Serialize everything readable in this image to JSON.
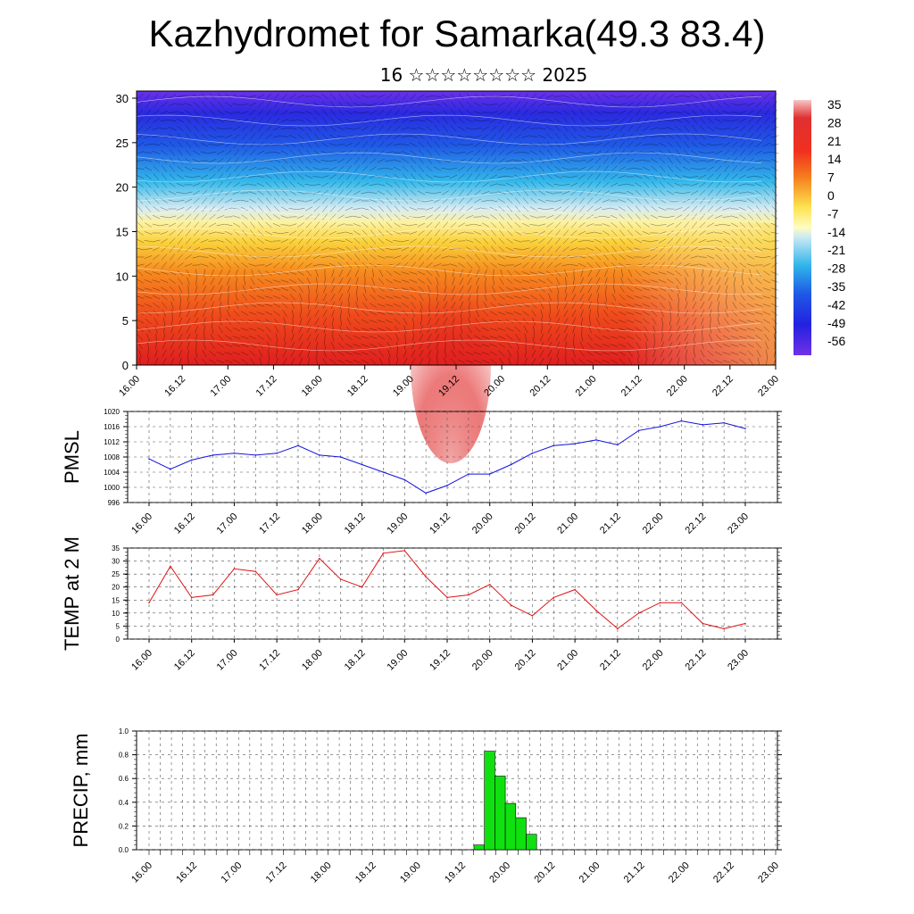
{
  "title": "Kazhydromet for Samarka(49.3 83.4)",
  "subtitle": "16 ☆☆☆☆☆☆☆☆ 2025",
  "time_labels": [
    "16.00",
    "16.12",
    "17.00",
    "17.12",
    "18.00",
    "18.12",
    "19.00",
    "19.12",
    "20.00",
    "20.12",
    "21.00",
    "21.12",
    "22.00",
    "22.12",
    "23.00"
  ],
  "colors": {
    "pmsl_line": "#1010e0",
    "temp_line": "#e01010",
    "precip_bar": "#10e010"
  },
  "chart_data": [
    {
      "type": "heatmap",
      "name": "cross-section",
      "ylabel": "",
      "ylim": [
        0,
        30
      ],
      "yticks": [
        "0",
        "5",
        "10",
        "15",
        "20",
        "25",
        "30"
      ],
      "x": [
        "16.00",
        "16.12",
        "17.00",
        "17.12",
        "18.00",
        "18.12",
        "19.00",
        "19.12",
        "20.00",
        "20.12",
        "21.00",
        "21.12",
        "22.00",
        "22.12",
        "23.00"
      ],
      "colorbar": {
        "labels": [
          "35",
          "28",
          "21",
          "14",
          "7",
          "0",
          "-7",
          "-14",
          "-21",
          "-28",
          "-35",
          "-42",
          "-49",
          "-56"
        ],
        "range": [
          -60,
          38
        ]
      }
    },
    {
      "type": "line",
      "ylabel": "PMSL",
      "ylim": [
        996,
        1020
      ],
      "yticks": [
        "996",
        "1000",
        "1004",
        "1008",
        "1012",
        "1016",
        "1020"
      ],
      "x": [
        "16.00",
        "16.06",
        "16.12",
        "16.18",
        "17.00",
        "17.06",
        "17.12",
        "17.18",
        "18.00",
        "18.06",
        "18.12",
        "18.18",
        "19.00",
        "19.06",
        "19.12",
        "19.18",
        "20.00",
        "20.06",
        "20.12",
        "20.18",
        "21.00",
        "21.06",
        "21.12",
        "21.18",
        "22.00",
        "22.06",
        "22.12",
        "22.18",
        "23.00"
      ],
      "values": [
        1007.5,
        1004.8,
        1007.2,
        1008.5,
        1009.0,
        1008.5,
        1009.0,
        1011.0,
        1008.5,
        1008.0,
        1006.0,
        1004.0,
        1002.0,
        998.5,
        1000.5,
        1003.5,
        1003.5,
        1006.0,
        1009.0,
        1011.0,
        1011.5,
        1012.5,
        1011.2,
        1015.0,
        1016.0,
        1017.5,
        1016.5,
        1017.0,
        1015.5
      ]
    },
    {
      "type": "line",
      "ylabel": "TEMP at 2 M",
      "ylim": [
        0,
        35
      ],
      "yticks": [
        "0",
        "5",
        "10",
        "15",
        "20",
        "25",
        "30",
        "35"
      ],
      "x": [
        "16.00",
        "16.06",
        "16.12",
        "16.18",
        "17.00",
        "17.06",
        "17.12",
        "17.18",
        "18.00",
        "18.06",
        "18.12",
        "18.18",
        "19.00",
        "19.06",
        "19.12",
        "19.18",
        "20.00",
        "20.06",
        "20.12",
        "20.18",
        "21.00",
        "21.06",
        "21.12",
        "21.18",
        "22.00",
        "22.06",
        "22.12",
        "22.18",
        "23.00"
      ],
      "values": [
        14,
        28,
        16,
        17,
        27,
        26,
        17,
        19,
        31,
        23,
        20,
        33,
        34,
        24,
        16,
        17,
        21,
        13,
        9,
        16,
        19,
        11,
        4,
        10,
        14,
        14,
        6,
        4,
        6
      ]
    },
    {
      "type": "bar",
      "ylabel": "PRECIP, mm",
      "ylim": [
        0,
        1.0
      ],
      "yticks": [
        "0.0",
        "0.2",
        "0.4",
        "0.6",
        "0.8",
        "1.0"
      ],
      "categories": [
        "19.15",
        "19.18",
        "19.21",
        "20.00",
        "20.03",
        "20.06",
        "20.09"
      ],
      "values": [
        0.04,
        0.83,
        0.62,
        0.39,
        0.27,
        0.13,
        0.0
      ]
    }
  ]
}
